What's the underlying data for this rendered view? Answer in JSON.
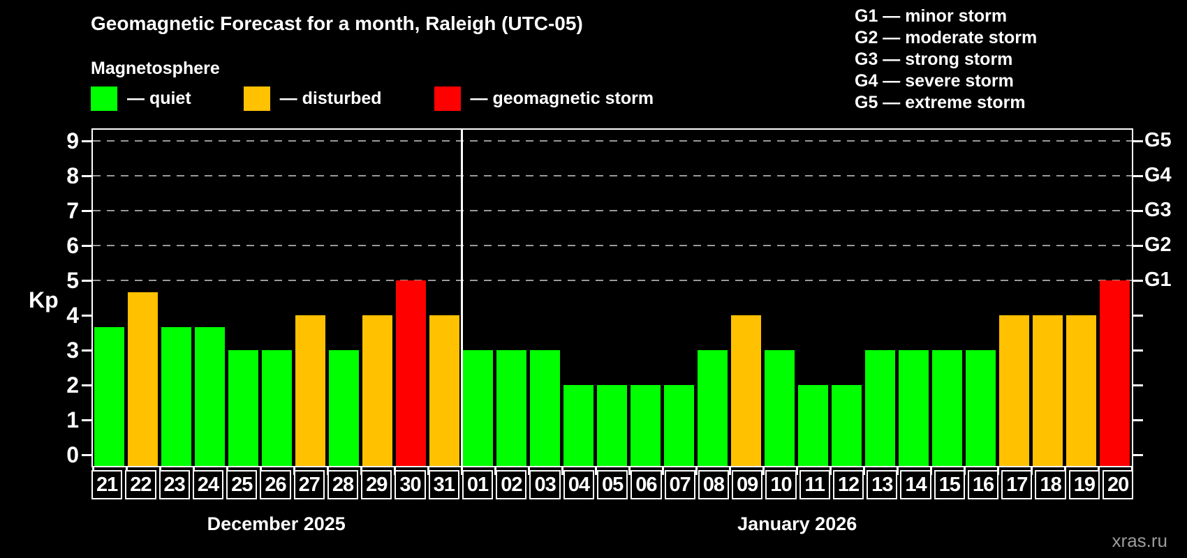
{
  "title": "Geomagnetic Forecast for a month, Raleigh (UTC-05)",
  "subtitle": "Magnetosphere",
  "legend": [
    {
      "status": "quiet",
      "label": "— quiet"
    },
    {
      "status": "disturbed",
      "label": "— disturbed"
    },
    {
      "status": "storm",
      "label": "— geomagnetic storm"
    }
  ],
  "g_legend": [
    "G1 — minor storm",
    "G2 — moderate storm",
    "G3 — strong storm",
    "G4 — severe storm",
    "G5 — extreme storm"
  ],
  "watermark": "xras.ru",
  "chart_data": {
    "type": "bar",
    "title": "Geomagnetic Forecast for a month, Raleigh (UTC-05)",
    "ylabel": "Kp",
    "ylim": [
      0,
      9.3
    ],
    "yticks": [
      0,
      1,
      2,
      3,
      4,
      5,
      6,
      7,
      8,
      9
    ],
    "grid_kp": [
      5,
      6,
      7,
      8,
      9
    ],
    "legend_position": "top-left",
    "grid": "dashed-horizontal-above-kp5",
    "right_axis": [
      {
        "kp": 5,
        "label": "G1"
      },
      {
        "kp": 6,
        "label": "G2"
      },
      {
        "kp": 7,
        "label": "G3"
      },
      {
        "kp": 8,
        "label": "G4"
      },
      {
        "kp": 9,
        "label": "G5"
      }
    ],
    "status_colors": {
      "quiet": "#00ff00",
      "disturbed": "#ffc100",
      "storm": "#ff0000"
    },
    "axis_color": "#ffffff",
    "background_color": "#000000",
    "months": [
      {
        "label": "December 2025",
        "days": [
          {
            "day": "21",
            "kp": 3.67,
            "status": "quiet"
          },
          {
            "day": "22",
            "kp": 4.67,
            "status": "disturbed"
          },
          {
            "day": "23",
            "kp": 3.67,
            "status": "quiet"
          },
          {
            "day": "24",
            "kp": 3.67,
            "status": "quiet"
          },
          {
            "day": "25",
            "kp": 3,
            "status": "quiet"
          },
          {
            "day": "26",
            "kp": 3,
            "status": "quiet"
          },
          {
            "day": "27",
            "kp": 4,
            "status": "disturbed"
          },
          {
            "day": "28",
            "kp": 3,
            "status": "quiet"
          },
          {
            "day": "29",
            "kp": 4,
            "status": "disturbed"
          },
          {
            "day": "30",
            "kp": 5,
            "status": "storm"
          },
          {
            "day": "31",
            "kp": 4,
            "status": "disturbed"
          }
        ]
      },
      {
        "label": "January 2026",
        "days": [
          {
            "day": "01",
            "kp": 3,
            "status": "quiet"
          },
          {
            "day": "02",
            "kp": 3,
            "status": "quiet"
          },
          {
            "day": "03",
            "kp": 3,
            "status": "quiet"
          },
          {
            "day": "04",
            "kp": 2,
            "status": "quiet"
          },
          {
            "day": "05",
            "kp": 2,
            "status": "quiet"
          },
          {
            "day": "06",
            "kp": 2,
            "status": "quiet"
          },
          {
            "day": "07",
            "kp": 2,
            "status": "quiet"
          },
          {
            "day": "08",
            "kp": 3,
            "status": "quiet"
          },
          {
            "day": "09",
            "kp": 4,
            "status": "disturbed"
          },
          {
            "day": "10",
            "kp": 3,
            "status": "quiet"
          },
          {
            "day": "11",
            "kp": 2,
            "status": "quiet"
          },
          {
            "day": "12",
            "kp": 2,
            "status": "quiet"
          },
          {
            "day": "13",
            "kp": 3,
            "status": "quiet"
          },
          {
            "day": "14",
            "kp": 3,
            "status": "quiet"
          },
          {
            "day": "15",
            "kp": 3,
            "status": "quiet"
          },
          {
            "day": "16",
            "kp": 3,
            "status": "quiet"
          },
          {
            "day": "17",
            "kp": 4,
            "status": "disturbed"
          },
          {
            "day": "18",
            "kp": 4,
            "status": "disturbed"
          },
          {
            "day": "19",
            "kp": 4,
            "status": "disturbed"
          },
          {
            "day": "20",
            "kp": 5,
            "status": "storm"
          }
        ]
      }
    ]
  }
}
